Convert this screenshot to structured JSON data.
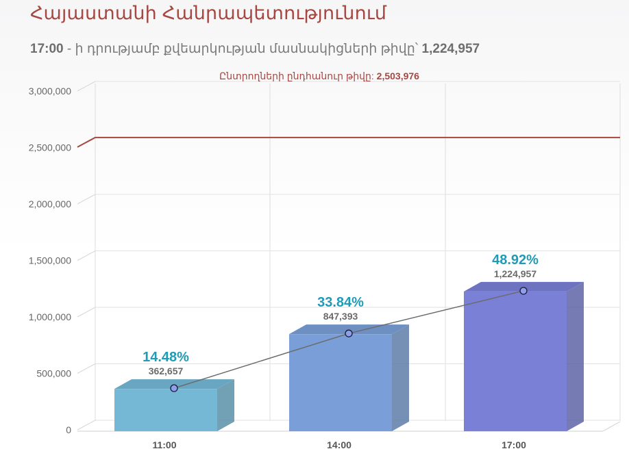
{
  "header": {
    "title": "Հայաստանի Հանրապետությունում",
    "time": "17:00",
    "text": " - ի դրությամբ քվեարկության մասնակիցների թիվը՝ ",
    "count": "1,224,957"
  },
  "chart_data": {
    "type": "bar",
    "categories": [
      "11:00",
      "14:00",
      "17:00"
    ],
    "values": [
      362657,
      847393,
      1224957
    ],
    "value_labels": [
      "362,657",
      "847,393",
      "1,224,957"
    ],
    "percent_labels": [
      "14.48%",
      "33.84%",
      "48.92%"
    ],
    "ylim": [
      0,
      3000000
    ],
    "yticks": [
      0,
      500000,
      1000000,
      1500000,
      2000000,
      2500000,
      3000000
    ],
    "ytick_labels": [
      "0",
      "500,000",
      "1,000,000",
      "1,500,000",
      "2,000,000",
      "2,500,000",
      "3,000,000"
    ],
    "reference_line": {
      "value": 2503976,
      "label": "Ընտրողների ընդհանուր թիվը: ",
      "value_label": "2,503,976",
      "color": "#a64741"
    },
    "bar_colors": [
      "#74b8d6",
      "#7a9fd8",
      "#7a80d6"
    ],
    "line_color": "#6b6b6b",
    "grid": true
  }
}
